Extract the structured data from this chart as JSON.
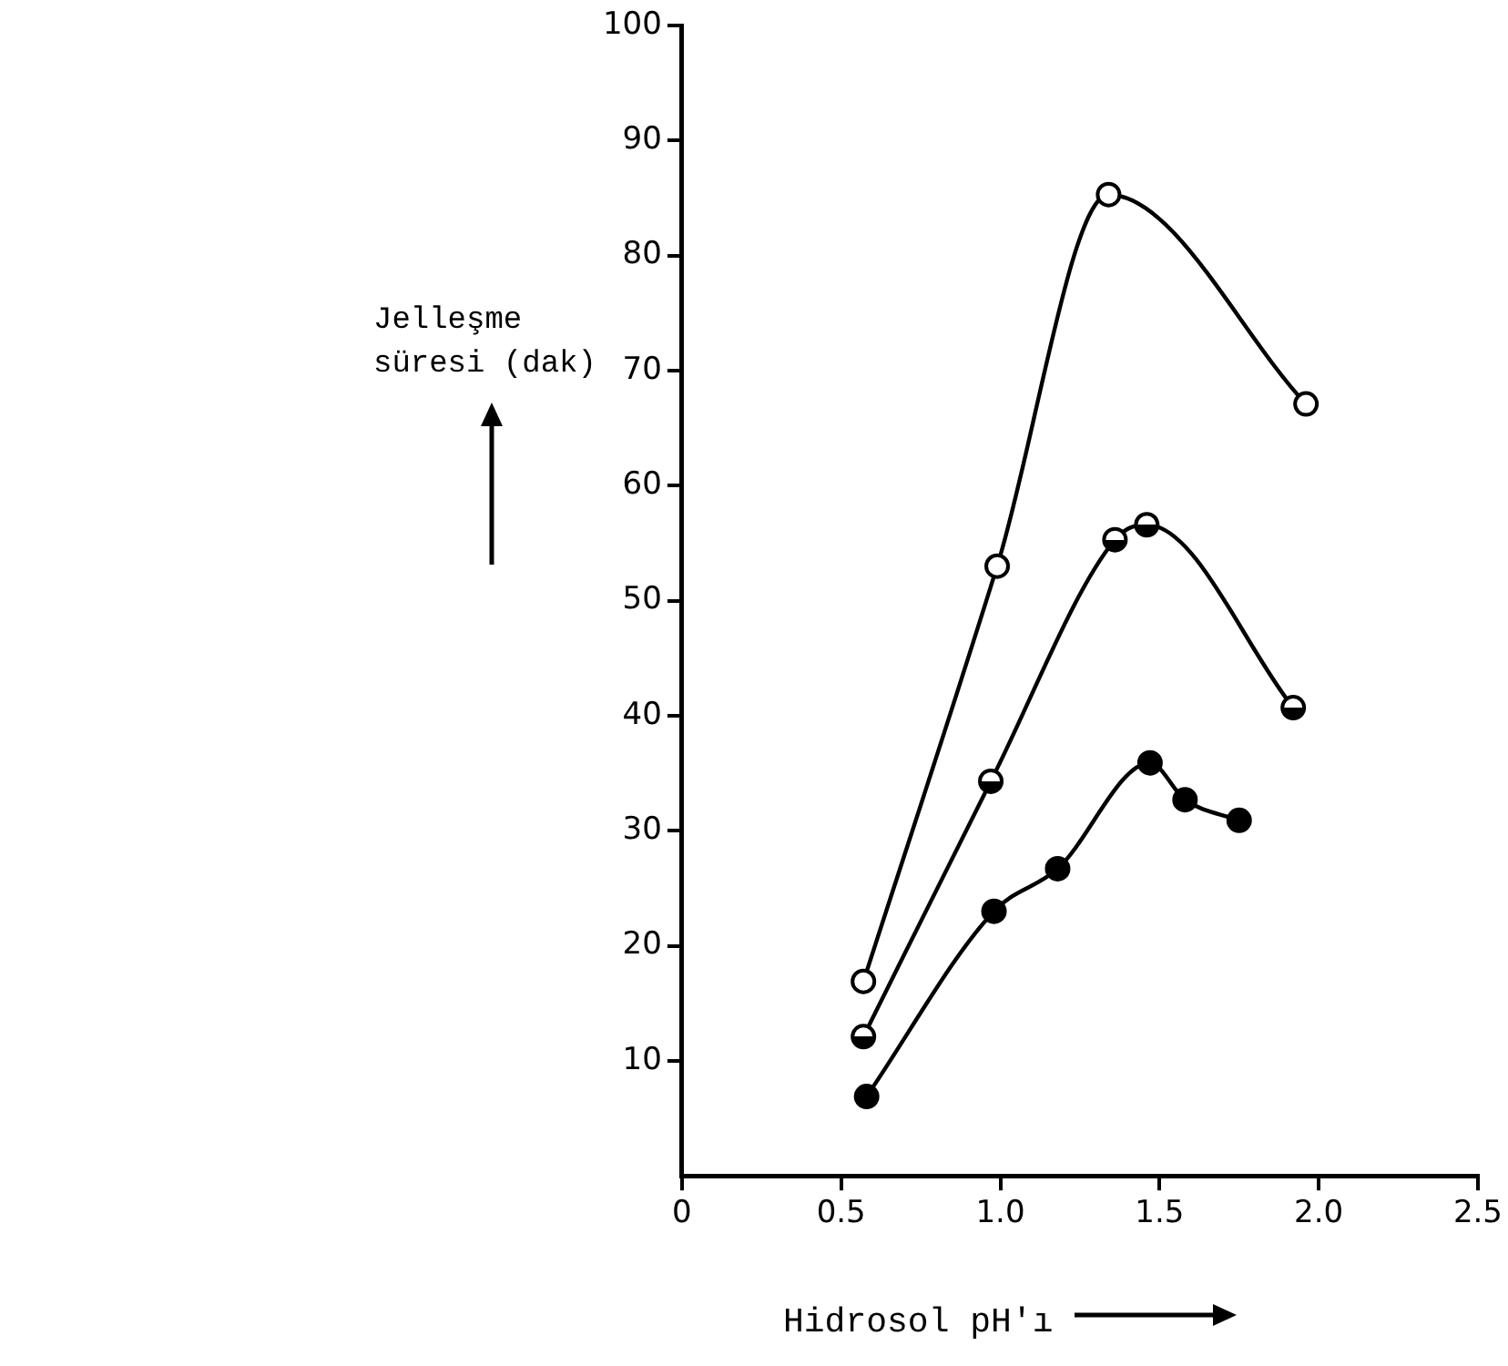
{
  "chart_data": {
    "type": "line",
    "xlabel": "Hidrosol pH'ı",
    "ylabel": "Jelleşme süresi (dak)",
    "xlim": [
      0,
      2.5
    ],
    "xticks": [
      {
        "value": 0,
        "label": "0"
      },
      {
        "value": 0.5,
        "label": "0.5"
      },
      {
        "value": 1,
        "label": "1.0"
      },
      {
        "value": 1.5,
        "label": "1.5"
      },
      {
        "value": 2,
        "label": "2.0"
      },
      {
        "value": 2.5,
        "label": "2.5"
      }
    ],
    "ylim": [
      0,
      100
    ],
    "yticks": [
      10,
      20,
      30,
      40,
      50,
      60,
      70,
      80,
      90,
      100
    ],
    "grid": false,
    "legend": false,
    "marker": "circle",
    "line_style": "solid",
    "series": [
      {
        "color": "#000000",
        "x": [
          0.57,
          0.99,
          1.34,
          1.96
        ],
        "values": [
          16.9,
          53,
          85.3,
          67.1
        ]
      },
      {
        "color": "#000000",
        "x": [
          0.57,
          0.97,
          1.36,
          1.46,
          1.92
        ],
        "values": [
          12.1,
          34.3,
          55.3,
          56.6,
          40.7
        ]
      },
      {
        "color": "#000000",
        "x": [
          0.58,
          0.98,
          1.18,
          1.47,
          1.58,
          1.75
        ],
        "values": [
          6.9,
          23,
          26.7,
          35.9,
          32.7,
          30.9
        ]
      }
    ]
  }
}
